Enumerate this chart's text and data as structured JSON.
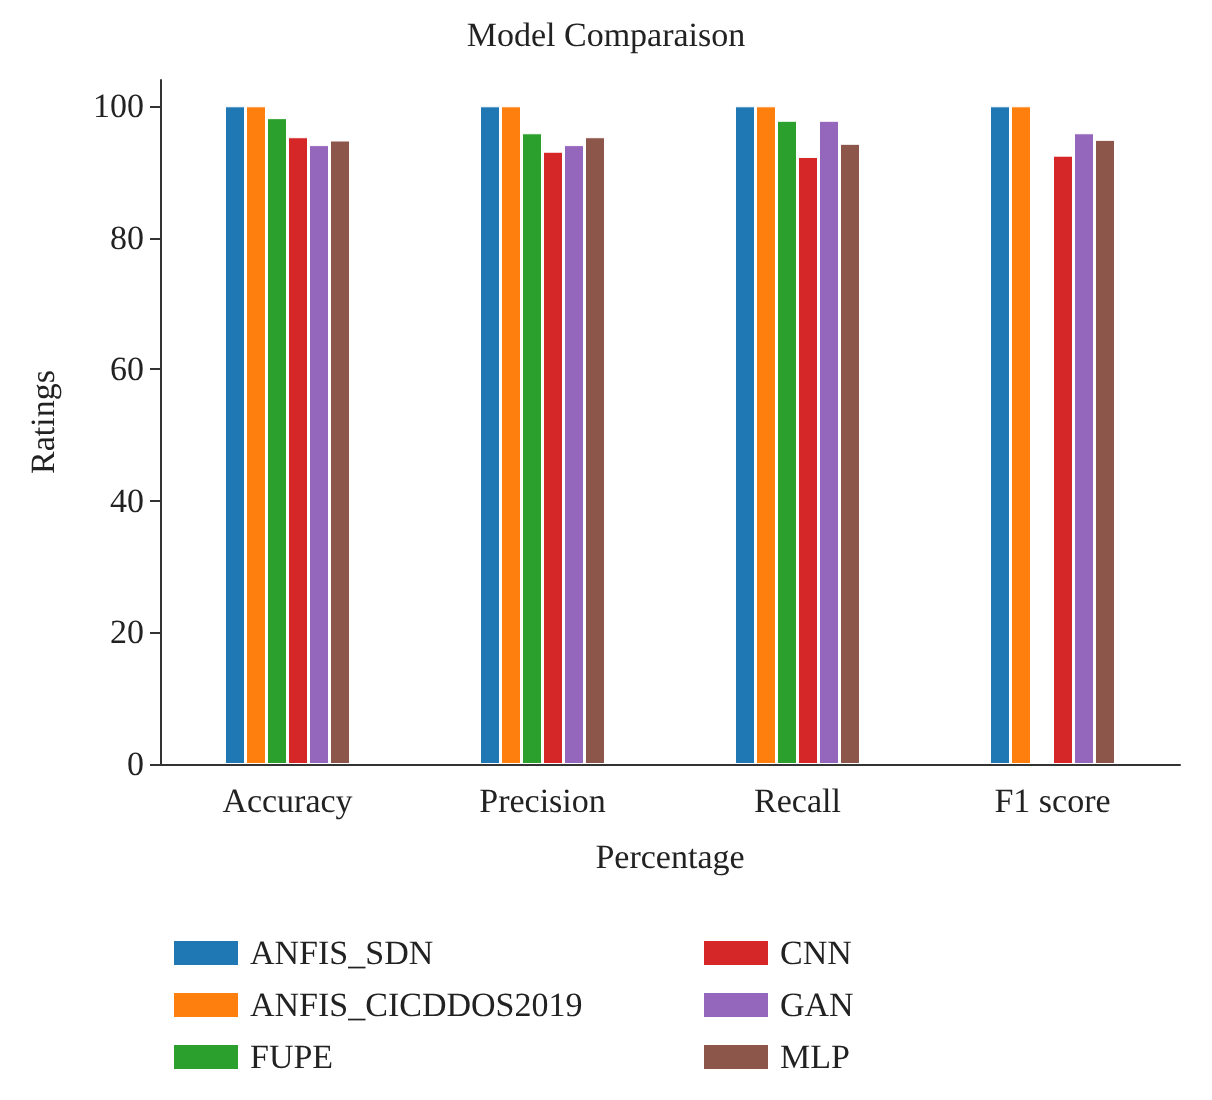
{
  "chart_data": {
    "type": "bar",
    "title": "Model Comparaison",
    "xlabel": "Percentage",
    "ylabel": "Ratings",
    "categories": [
      "Accuracy",
      "Precision",
      "Recall",
      "F1 score"
    ],
    "series": [
      {
        "name": "ANFIS_SDN",
        "color": "#1f77b4",
        "values": [
          100,
          100,
          100,
          100
        ]
      },
      {
        "name": "ANFIS_CICDDOS2019",
        "color": "#ff7f0e",
        "values": [
          100,
          100,
          100,
          100
        ]
      },
      {
        "name": "FUPE",
        "color": "#2ca02c",
        "values": [
          98.2,
          95.9,
          97.8,
          null
        ]
      },
      {
        "name": "CNN",
        "color": "#d62728",
        "values": [
          95.3,
          93.1,
          92.3,
          92.5
        ]
      },
      {
        "name": "GAN",
        "color": "#9467bd",
        "values": [
          94.1,
          94.1,
          97.8,
          95.9
        ]
      },
      {
        "name": "MLP",
        "color": "#8c564b",
        "values": [
          94.8,
          95.3,
          94.3,
          94.9
        ]
      }
    ],
    "ylim": [
      0,
      104
    ],
    "yticks": [
      0,
      20,
      40,
      60,
      80,
      100
    ],
    "grid": false,
    "legend": "bottom"
  }
}
